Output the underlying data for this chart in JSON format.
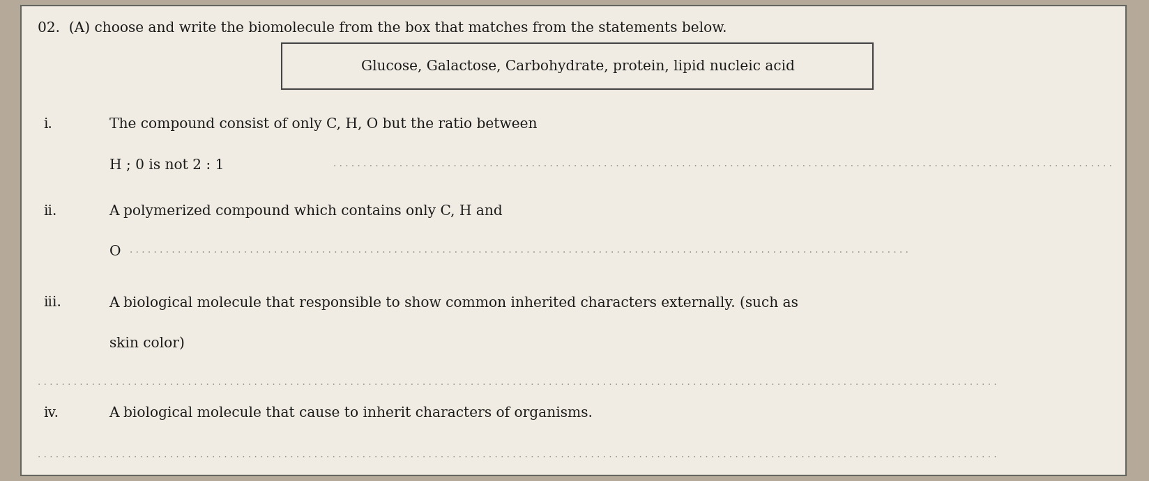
{
  "bg_color": "#b5aa9a",
  "panel_color": "#ede8e0",
  "inner_color": "#f0ece4",
  "border_color": "#666660",
  "text_color": "#1a1a18",
  "dot_color": "#888880",
  "title": "02.  (A) choose and write the biomolecule from the box that matches from the statements below.",
  "box_text": "Glucose, Galactose, Carbohydrate, protein, lipid nucleic acid",
  "items": [
    {
      "label": "i.",
      "line1": "The compound consist of only C, H, O but the ratio between",
      "line2": "H ; 0 is not 2 : 1",
      "italic_label": false
    },
    {
      "label": "ii.",
      "line1": "A polymerized compound which contains only C, H and",
      "line2": "O",
      "italic_label": false
    },
    {
      "label": "iii.",
      "line1": "A biological molecule that responsible to show common inherited characters externally. (such as",
      "line2": "skin color)",
      "italic_label": false
    },
    {
      "label": "iv.",
      "line1": "A biological molecule that cause to inherit characters of organisms.",
      "line2": "",
      "italic_label": false
    }
  ],
  "font_size_title": 14.5,
  "font_size_body": 14.5,
  "font_size_box": 14.5,
  "font_size_dots": 10
}
